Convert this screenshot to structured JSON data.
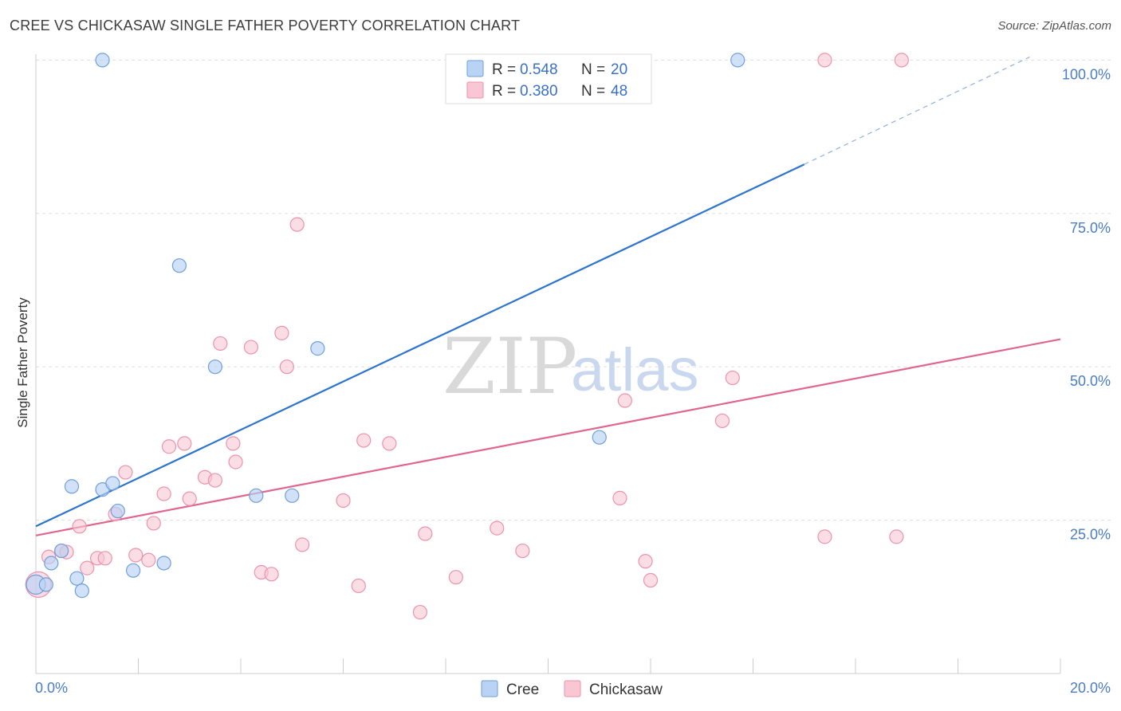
{
  "header": {
    "title": "CREE VS CHICKASAW SINGLE FATHER POVERTY CORRELATION CHART",
    "source": "Source: ZipAtlas.com"
  },
  "watermark": {
    "zip": "ZIP",
    "atlas": "atlas"
  },
  "chart_data": {
    "type": "scatter",
    "title": "CREE VS CHICKASAW SINGLE FATHER POVERTY CORRELATION CHART",
    "xlabel": "",
    "ylabel": "Single Father Poverty",
    "xlim": [
      0,
      20
    ],
    "ylim": [
      0,
      102
    ],
    "x_tick_labels": {
      "min": "0.0%",
      "max": "20.0%"
    },
    "y_ticks": [
      {
        "value": 25,
        "label": "25.0%"
      },
      {
        "value": 50,
        "label": "50.0%"
      },
      {
        "value": 75,
        "label": "75.0%"
      },
      {
        "value": 100,
        "label": "100.0%"
      }
    ],
    "grid": true,
    "colors": {
      "cree_fill": "#b9d3f5",
      "cree_stroke": "#6f9fdc",
      "cree_line": "#2d74cf",
      "chickasaw_fill": "#f9c6d4",
      "chickasaw_stroke": "#eb93ad",
      "chickasaw_line": "#e06690",
      "grid": "#dddddd",
      "tick": "#4a7cc7"
    },
    "legend": [
      {
        "name": "Cree",
        "r_label": "R = ",
        "r": "0.548",
        "n_label": "N = ",
        "n": "20"
      },
      {
        "name": "Chickasaw",
        "r_label": "R = ",
        "r": "0.380",
        "n_label": "N = ",
        "n": "48"
      }
    ],
    "series": [
      {
        "name": "Cree",
        "points": [
          [
            0.0,
            14.5
          ],
          [
            0.2,
            14.5
          ],
          [
            0.3,
            18
          ],
          [
            0.5,
            20
          ],
          [
            0.7,
            30.5
          ],
          [
            0.8,
            15.5
          ],
          [
            0.9,
            13.5
          ],
          [
            1.3,
            30
          ],
          [
            1.5,
            31
          ],
          [
            1.6,
            26.5
          ],
          [
            1.9,
            16.8
          ],
          [
            2.5,
            18
          ],
          [
            2.8,
            66.5
          ],
          [
            3.5,
            50
          ],
          [
            4.3,
            29
          ],
          [
            5.0,
            29
          ],
          [
            5.5,
            53
          ],
          [
            11.0,
            38.5
          ],
          [
            1.3,
            100
          ],
          [
            13.7,
            100
          ]
        ],
        "trend": {
          "x0": 0,
          "y0": 24,
          "x1": 15,
          "y1": 83,
          "dash_x1": 19.4,
          "dash_y1": 100.5
        }
      },
      {
        "name": "Chickasaw",
        "points": [
          [
            0.05,
            14.5
          ],
          [
            0.25,
            19
          ],
          [
            0.5,
            20
          ],
          [
            0.6,
            19.8
          ],
          [
            0.85,
            24
          ],
          [
            1.0,
            17.2
          ],
          [
            1.2,
            18.8
          ],
          [
            1.35,
            18.8
          ],
          [
            1.55,
            26
          ],
          [
            1.75,
            32.8
          ],
          [
            1.95,
            19.3
          ],
          [
            2.2,
            18.5
          ],
          [
            2.3,
            24.5
          ],
          [
            2.5,
            29.3
          ],
          [
            2.6,
            37
          ],
          [
            2.9,
            37.5
          ],
          [
            3.0,
            28.5
          ],
          [
            3.3,
            32
          ],
          [
            3.5,
            31.5
          ],
          [
            3.6,
            53.8
          ],
          [
            3.85,
            37.5
          ],
          [
            3.9,
            34.5
          ],
          [
            4.2,
            53.2
          ],
          [
            4.4,
            16.5
          ],
          [
            4.6,
            16.2
          ],
          [
            4.8,
            55.5
          ],
          [
            4.9,
            50
          ],
          [
            5.1,
            73.2
          ],
          [
            5.2,
            21
          ],
          [
            6.0,
            28.2
          ],
          [
            6.3,
            14.3
          ],
          [
            6.4,
            38
          ],
          [
            6.9,
            37.5
          ],
          [
            7.5,
            10
          ],
          [
            7.6,
            22.8
          ],
          [
            8.2,
            15.7
          ],
          [
            9.0,
            23.7
          ],
          [
            9.5,
            20
          ],
          [
            11.5,
            44.5
          ],
          [
            11.4,
            28.6
          ],
          [
            11.9,
            18.3
          ],
          [
            12.0,
            15.2
          ],
          [
            13.4,
            41.2
          ],
          [
            13.6,
            48.2
          ],
          [
            15.4,
            22.3
          ],
          [
            16.8,
            22.3
          ],
          [
            15.4,
            100
          ],
          [
            16.9,
            100
          ]
        ],
        "trend": {
          "x0": 0,
          "y0": 22.5,
          "x1": 20,
          "y1": 54.5
        }
      }
    ]
  }
}
